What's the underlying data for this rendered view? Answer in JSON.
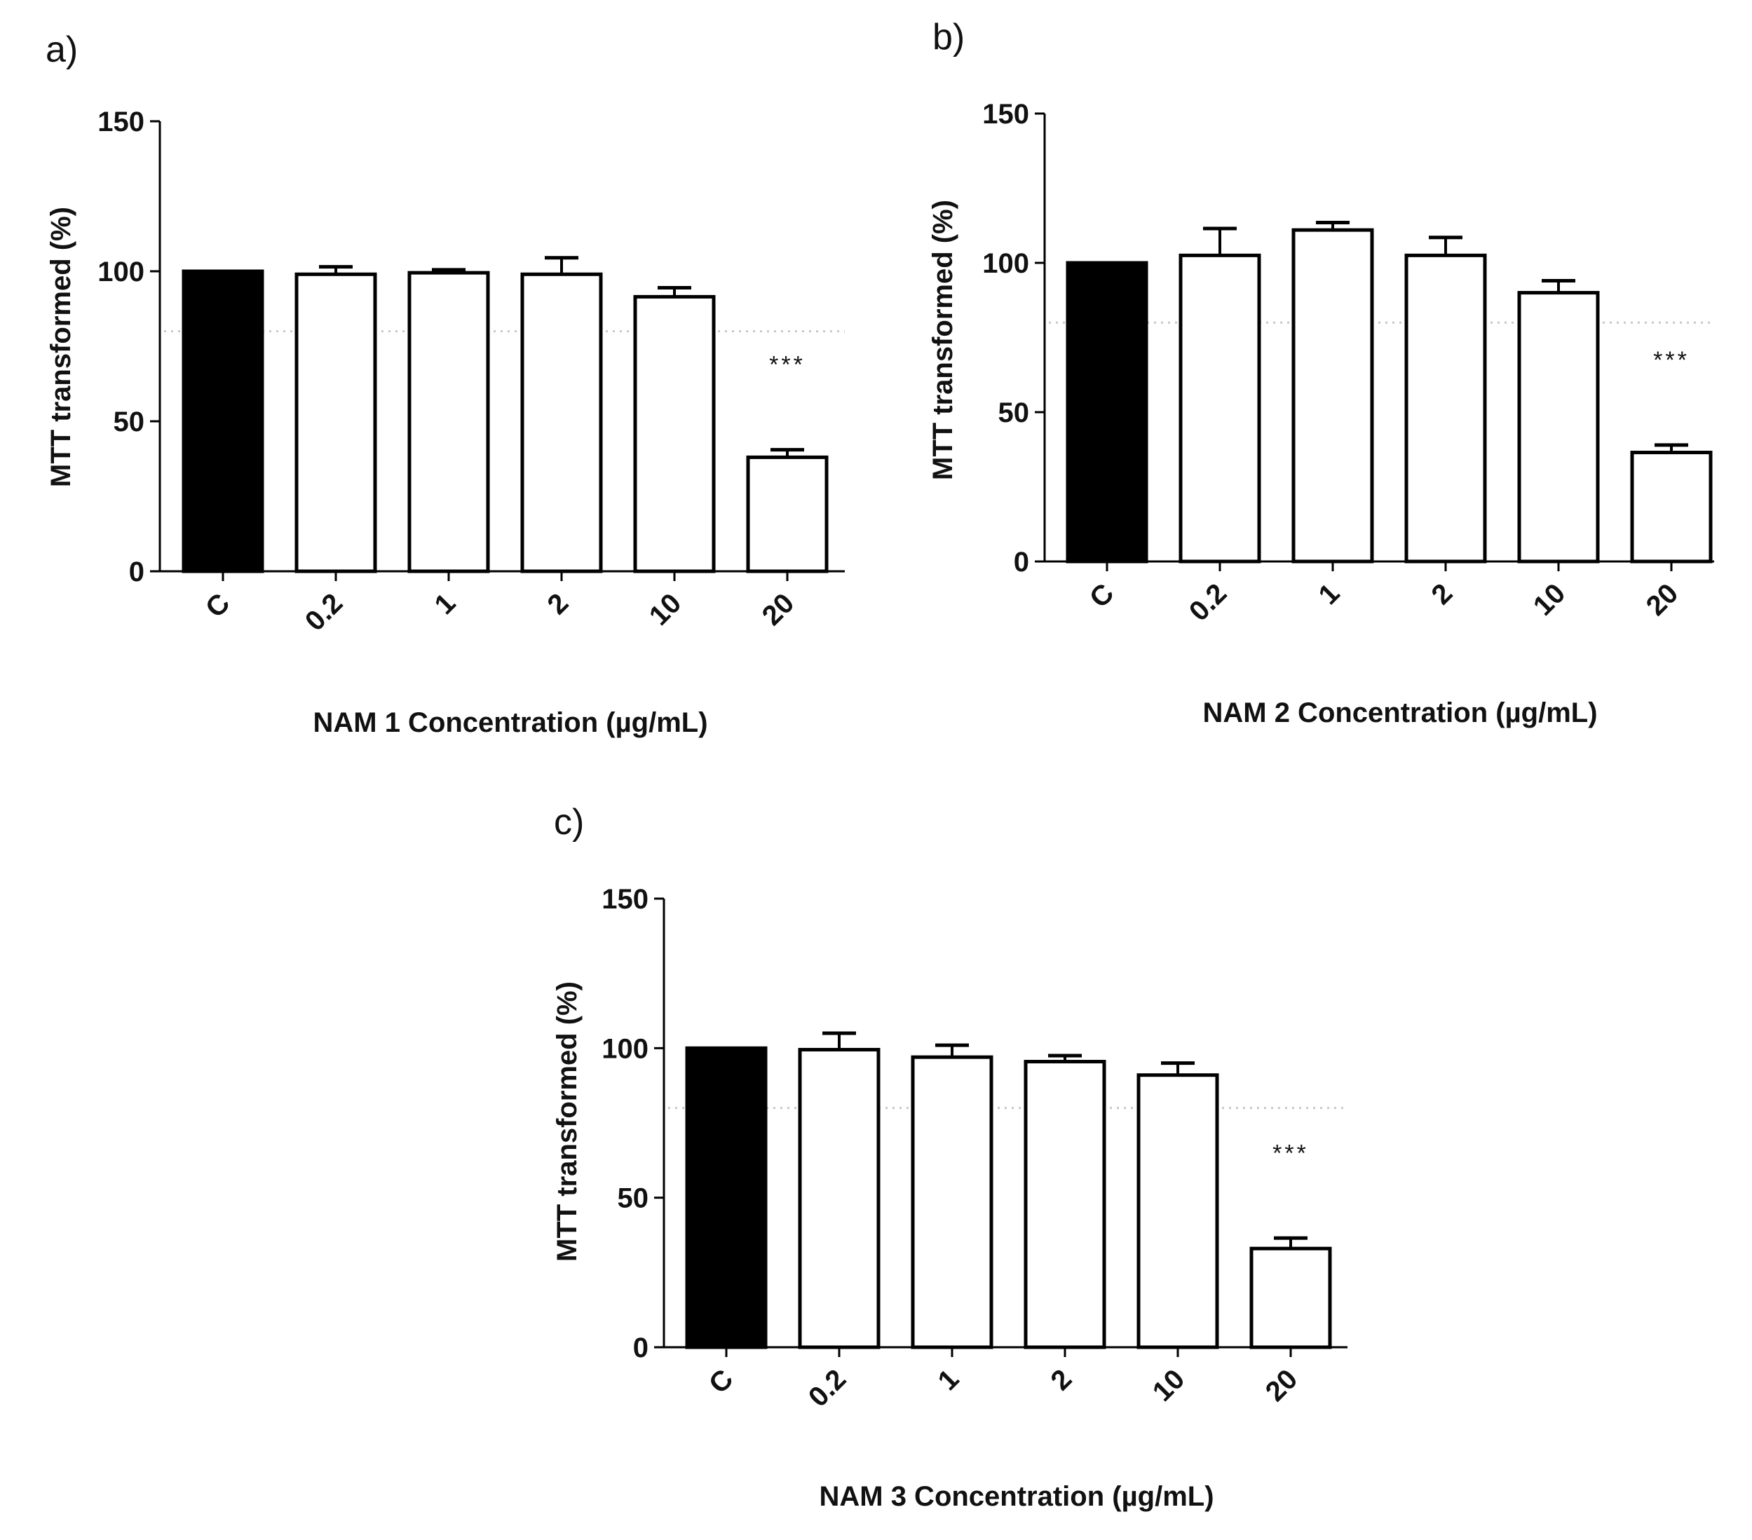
{
  "figure": {
    "colors": {
      "control_fill": "#000000",
      "bar_fill": "#ffffff",
      "stroke": "#000000",
      "reference_line": "#c8c8c8"
    }
  },
  "chart_data": [
    {
      "panel": "a)",
      "type": "bar",
      "categories": [
        "C",
        "0.2",
        "1",
        "2",
        "10",
        "20"
      ],
      "values": [
        100,
        99,
        99.5,
        99,
        91.5,
        38
      ],
      "errors": [
        0,
        2.5,
        1,
        5.5,
        3,
        2.5
      ],
      "xlabel": "NAM 1 Concentration (µg/mL)",
      "ylabel": "MTT transformed (%)",
      "ylim": [
        0,
        150
      ],
      "yticks": [
        "0",
        "50",
        "100",
        "150"
      ],
      "reference_line": 80,
      "significance": [
        {
          "category": "20",
          "label": "***"
        }
      ]
    },
    {
      "panel": "b)",
      "type": "bar",
      "categories": [
        "C",
        "0.2",
        "1",
        "2",
        "10",
        "20"
      ],
      "values": [
        100,
        102.5,
        111,
        102.5,
        90,
        36.5
      ],
      "errors": [
        0,
        9,
        2.5,
        6,
        4,
        2.5
      ],
      "xlabel": "NAM 2 Concentration (µg/mL)",
      "ylabel": "MTT transformed (%)",
      "ylim": [
        0,
        150
      ],
      "yticks": [
        "0",
        "50",
        "100",
        "150"
      ],
      "reference_line": 80,
      "significance": [
        {
          "category": "20",
          "label": "***"
        }
      ]
    },
    {
      "panel": "c)",
      "type": "bar",
      "categories": [
        "C",
        "0.2",
        "1",
        "2",
        "10",
        "20"
      ],
      "values": [
        100,
        99.5,
        97,
        95.5,
        91,
        33
      ],
      "errors": [
        0,
        5.5,
        4,
        2,
        4,
        3.5
      ],
      "xlabel": "NAM 3 Concentration (µg/mL)",
      "ylabel": "MTT transformed (%)",
      "ylim": [
        0,
        150
      ],
      "yticks": [
        "0",
        "50",
        "100",
        "150"
      ],
      "reference_line": 80,
      "significance": [
        {
          "category": "20",
          "label": "***"
        }
      ]
    }
  ]
}
